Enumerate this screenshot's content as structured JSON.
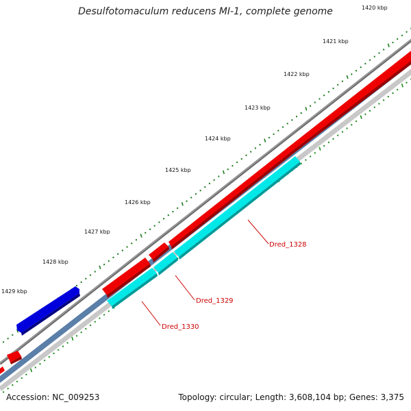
{
  "title": "Desulfotomaculum reducens MI-1, complete genome",
  "footer": {
    "accession": "Accession: NC_009253",
    "summary": "Topology: circular; Length: 3,608,104 bp; Genes: 3,375"
  },
  "ruler": {
    "labels": [
      "1420 kbp",
      "1421 kbp",
      "1422 kbp",
      "1423 kbp",
      "1424 kbp",
      "1425 kbp",
      "1426 kbp",
      "1427 kbp",
      "1428 kbp",
      "1429 kbp"
    ],
    "major_color": "#1a7a1a",
    "minor_color": "#1a8a1a"
  },
  "genes": [
    {
      "label": "Dred_1328",
      "strand": "forward"
    },
    {
      "label": "Dred_1329",
      "strand": "forward"
    },
    {
      "label": "Dred_1330",
      "strand": "forward"
    }
  ],
  "colors": {
    "backbone": "#808080",
    "forward_cds": "#ee0000",
    "forward_cds_dark": "#990000",
    "reverse_cds": "#0000dd",
    "reverse_cds_dark": "#000080",
    "cyan_track": "#00e8e8",
    "cyan_track_dark": "#009999",
    "steel_track": "#5a7fa8",
    "grey_track": "#c8c8c8",
    "label_color": "#cc0000"
  }
}
